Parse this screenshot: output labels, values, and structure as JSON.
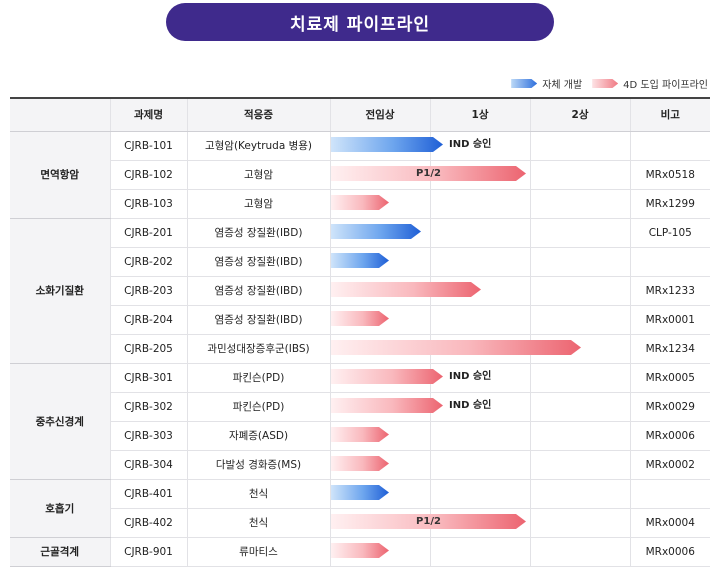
{
  "page": {
    "title": "치료제 파이프라인"
  },
  "legend": [
    {
      "label": "자체 개발",
      "color": "blue"
    },
    {
      "label": "4D 도입 파이프라인",
      "color": "pink"
    }
  ],
  "table": {
    "headers": [
      "",
      "과제명",
      "적응증",
      "전임상",
      "1상",
      "2상",
      "비고"
    ]
  },
  "chart_data": {
    "type": "bar",
    "orientation": "horizontal",
    "title": "치료제 파이프라인",
    "stages": [
      "전임상",
      "1상",
      "2상"
    ],
    "value_unit": "stage progress (0 = start of 전임상, 3 = end of 2상)",
    "xlim": [
      0,
      3
    ],
    "series": [
      {
        "name": "자체 개발",
        "color": "#2f6fdc"
      },
      {
        "name": "4D 도입 파이프라인",
        "color": "#f07a84"
      }
    ],
    "groups": [
      {
        "name": "면역항암",
        "rows": [
          {
            "code": "CJRB-101",
            "indication": "고형암(Keytruda 병용)",
            "progress": 1.12,
            "series": "자체 개발",
            "label": "IND 승인",
            "label_pos": "after",
            "note": ""
          },
          {
            "code": "CJRB-102",
            "indication": "고형암",
            "progress": 1.95,
            "series": "4D 도입 파이프라인",
            "label": "P1/2",
            "label_pos": "inside",
            "note": "MRx0518"
          },
          {
            "code": "CJRB-103",
            "indication": "고형암",
            "progress": 0.58,
            "series": "4D 도입 파이프라인",
            "label": "",
            "label_pos": "",
            "note": "MRx1299"
          }
        ]
      },
      {
        "name": "소화기질환",
        "rows": [
          {
            "code": "CJRB-201",
            "indication": "염증성 장질환(IBD)",
            "progress": 0.9,
            "series": "자체 개발",
            "label": "",
            "label_pos": "",
            "note": "CLP-105"
          },
          {
            "code": "CJRB-202",
            "indication": "염증성 장질환(IBD)",
            "progress": 0.58,
            "series": "자체 개발",
            "label": "",
            "label_pos": "",
            "note": ""
          },
          {
            "code": "CJRB-203",
            "indication": "염증성 장질환(IBD)",
            "progress": 1.5,
            "series": "4D 도입 파이프라인",
            "label": "",
            "label_pos": "",
            "note": "MRx1233"
          },
          {
            "code": "CJRB-204",
            "indication": "염증성 장질환(IBD)",
            "progress": 0.58,
            "series": "4D 도입 파이프라인",
            "label": "",
            "label_pos": "",
            "note": "MRx0001"
          },
          {
            "code": "CJRB-205",
            "indication": "과민성대장증후군(IBS)",
            "progress": 2.5,
            "series": "4D 도입 파이프라인",
            "label": "",
            "label_pos": "",
            "note": "MRx1234"
          }
        ]
      },
      {
        "name": "중추신경계",
        "rows": [
          {
            "code": "CJRB-301",
            "indication": "파킨슨(PD)",
            "progress": 1.12,
            "series": "4D 도입 파이프라인",
            "label": "IND 승인",
            "label_pos": "after",
            "note": "MRx0005"
          },
          {
            "code": "CJRB-302",
            "indication": "파킨슨(PD)",
            "progress": 1.12,
            "series": "4D 도입 파이프라인",
            "label": "IND 승인",
            "label_pos": "after",
            "note": "MRx0029"
          },
          {
            "code": "CJRB-303",
            "indication": "자폐증(ASD)",
            "progress": 0.58,
            "series": "4D 도입 파이프라인",
            "label": "",
            "label_pos": "",
            "note": "MRx0006"
          },
          {
            "code": "CJRB-304",
            "indication": "다발성 경화증(MS)",
            "progress": 0.58,
            "series": "4D 도입 파이프라인",
            "label": "",
            "label_pos": "",
            "note": "MRx0002"
          }
        ]
      },
      {
        "name": "호흡기",
        "rows": [
          {
            "code": "CJRB-401",
            "indication": "천식",
            "progress": 0.58,
            "series": "자체 개발",
            "label": "",
            "label_pos": "",
            "note": ""
          },
          {
            "code": "CJRB-402",
            "indication": "천식",
            "progress": 1.95,
            "series": "4D 도입 파이프라인",
            "label": "P1/2",
            "label_pos": "inside",
            "note": "MRx0004"
          }
        ]
      },
      {
        "name": "근골격계",
        "rows": [
          {
            "code": "CJRB-901",
            "indication": "류마티스",
            "progress": 0.58,
            "series": "4D 도입 파이프라인",
            "label": "",
            "label_pos": "",
            "note": "MRx0006"
          }
        ]
      }
    ]
  }
}
